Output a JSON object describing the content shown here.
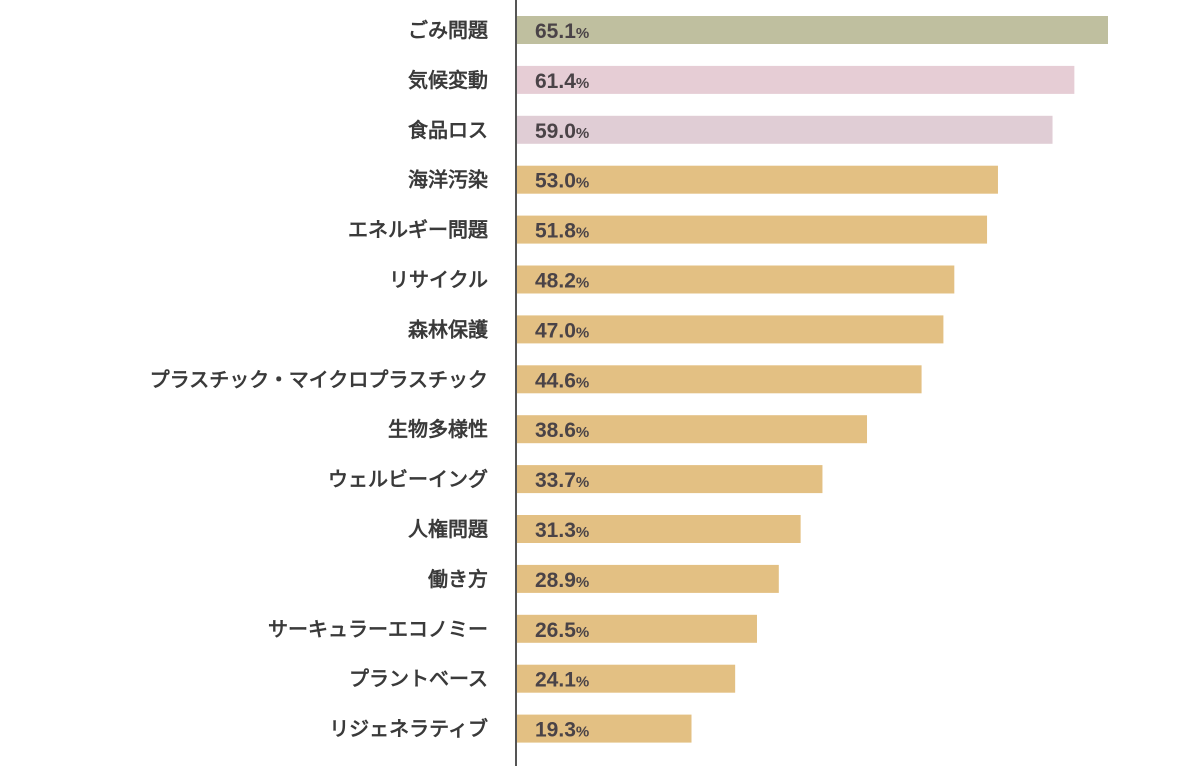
{
  "chart_data": {
    "type": "bar",
    "orientation": "horizontal",
    "categories": [
      "ごみ問題",
      "気候変動",
      "食品ロス",
      "海洋汚染",
      "エネルギー問題",
      "リサイクル",
      "森林保護",
      "プラスチック・マイクロプラスチック",
      "生物多様性",
      "ウェルビーイング",
      "人権問題",
      "働き方",
      "サーキュラーエコノミー",
      "プラントベース",
      "リジェネラティブ"
    ],
    "values": [
      65.1,
      61.4,
      59.0,
      53.0,
      51.8,
      48.2,
      47.0,
      44.6,
      38.6,
      33.7,
      31.3,
      28.9,
      26.5,
      24.1,
      19.3
    ],
    "value_labels": [
      "65.1",
      "61.4",
      "59.0",
      "53.0",
      "51.8",
      "48.2",
      "47.0",
      "44.6",
      "38.6",
      "33.7",
      "31.3",
      "28.9",
      "26.5",
      "24.1",
      "19.3"
    ],
    "unit": "%",
    "colors": [
      "#bfbf9f",
      "#e6cdd5",
      "#e0cdd5",
      "#e3c083",
      "#e3c083",
      "#e3c083",
      "#e3c083",
      "#e3c083",
      "#e3c083",
      "#e3c083",
      "#e3c083",
      "#e3c083",
      "#e3c083",
      "#e3c083",
      "#e3c083"
    ],
    "axis_color": "#555555",
    "xlim": [
      0,
      65.1
    ],
    "grid": false,
    "legend": "none"
  }
}
